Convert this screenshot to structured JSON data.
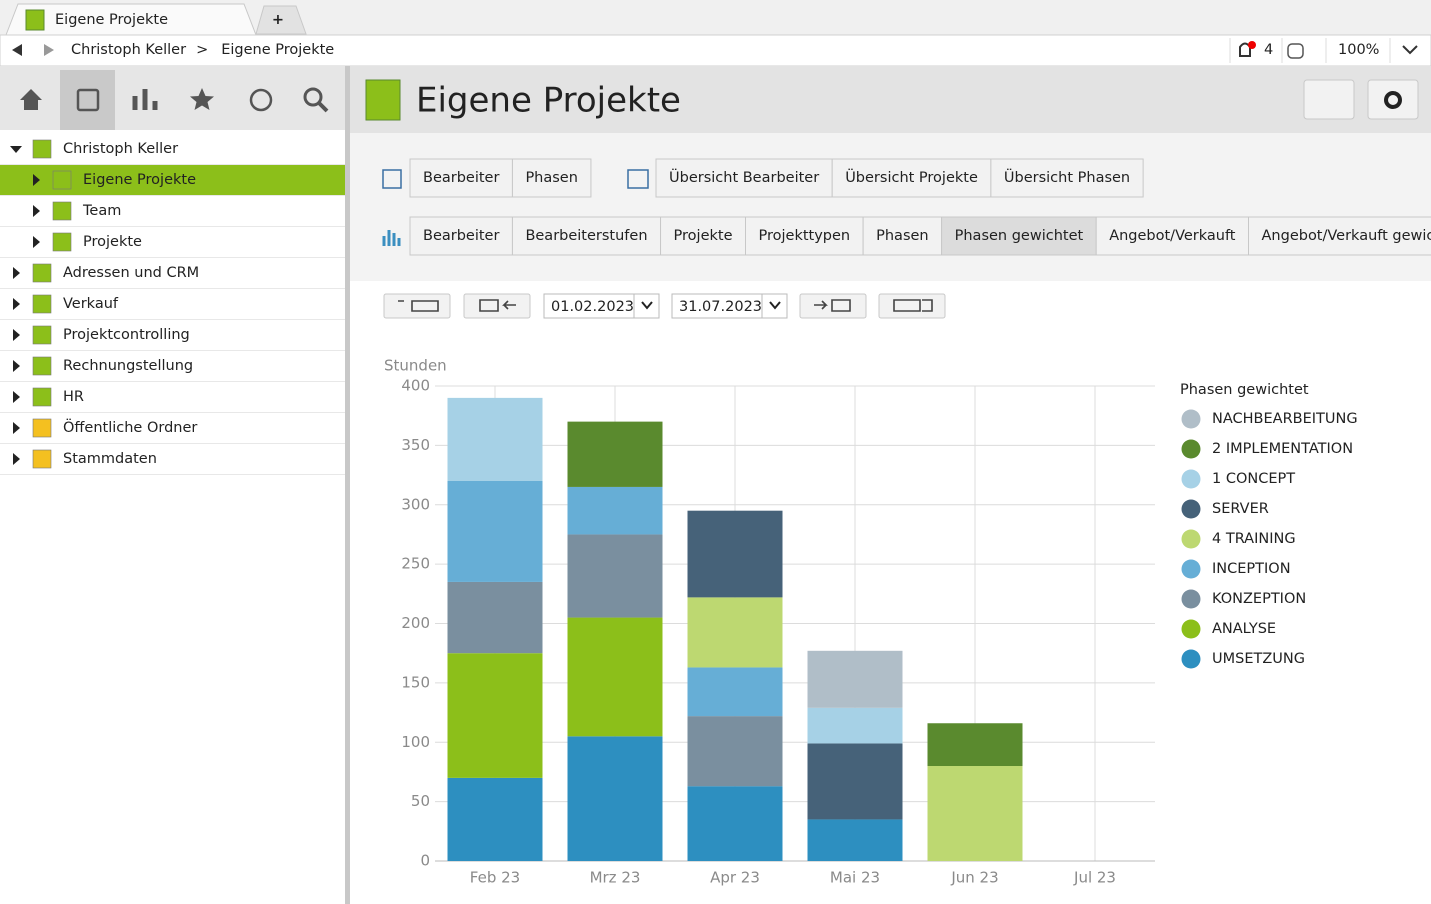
{
  "tab_bar": {
    "tabs": [
      "Eigene Projekte"
    ],
    "new_tab": "+"
  },
  "address_bar": {
    "breadcrumb": [
      "Christoph Keller",
      "Eigene Projekte"
    ],
    "separator": ">",
    "notifications": "4",
    "zoom": "100%"
  },
  "sidebar": {
    "tree": [
      {
        "label": "Christoph Keller",
        "level": 0,
        "expanded": true
      },
      {
        "label": "Eigene Projekte",
        "level": 1,
        "selected": true
      },
      {
        "label": "Team",
        "level": 1
      },
      {
        "label": "Projekte",
        "level": 1
      },
      {
        "label": "Adressen und CRM",
        "level": 0
      },
      {
        "label": "Verkauf",
        "level": 0
      },
      {
        "label": "Projektcontrolling",
        "level": 0
      },
      {
        "label": "Rechnungstellung",
        "level": 0
      },
      {
        "label": "HR",
        "level": 0
      },
      {
        "label": "Öffentliche Ordner",
        "level": 0
      },
      {
        "label": "Stammdaten",
        "level": 0
      }
    ]
  },
  "header": {
    "title": "Eigene Projekte"
  },
  "toolbar": {
    "tables": [
      "Bearbeiter",
      "Phasen"
    ],
    "overviews": [
      "Übersicht Bearbeiter",
      "Übersicht Projekte",
      "Übersicht Phasen"
    ],
    "charts": [
      "Bearbeiter",
      "Bearbeiterstufen",
      "Projekte",
      "Projekttypen",
      "Phasen",
      "Phasen gewichtet",
      "Angebot/Verkauft",
      "Angebot/Verkauft gewichtet"
    ],
    "active_chart": 5
  },
  "date_range": {
    "from": "01.02.2023",
    "to": "31.07.2023"
  },
  "chart_data": {
    "type": "stacked_bar",
    "y_label": "Stunden",
    "legend_title": "Phasen gewichtet",
    "legend_position": "right",
    "categories": [
      "Feb 23",
      "Mrz 23",
      "Apr 23",
      "Mai 23",
      "Jun 23",
      "Jul 23"
    ],
    "ylim": [
      0,
      400
    ],
    "yticks": [
      0,
      50,
      100,
      150,
      200,
      250,
      300,
      350,
      400
    ],
    "grid": true,
    "series": [
      {
        "name": "NACHBEARBEITUNG",
        "color": "#b0bec8",
        "values": [
          null,
          null,
          null,
          48,
          null,
          null
        ]
      },
      {
        "name": "2 IMPLEMENTATION",
        "color": "#5a8a2e",
        "values": [
          null,
          55,
          null,
          null,
          36,
          null
        ]
      },
      {
        "name": "1 CONCEPT",
        "color": "#a6d1e6",
        "values": [
          70,
          null,
          null,
          30,
          null,
          null
        ]
      },
      {
        "name": "SERVER",
        "color": "#466279",
        "values": [
          null,
          null,
          73,
          64,
          null,
          null
        ]
      },
      {
        "name": "4 TRAINING",
        "color": "#bdd871",
        "values": [
          null,
          null,
          59,
          null,
          80,
          null
        ]
      },
      {
        "name": "INCEPTION",
        "color": "#66aed6",
        "values": [
          85,
          40,
          41,
          null,
          null,
          null
        ]
      },
      {
        "name": "KONZEPTION",
        "color": "#7a8f9f",
        "values": [
          60,
          70,
          59,
          null,
          null,
          null
        ]
      },
      {
        "name": "ANALYSE",
        "color": "#8cbf1a",
        "values": [
          105,
          100,
          null,
          null,
          null,
          null
        ]
      },
      {
        "name": "UMSETZUNG",
        "color": "#2d8fc0",
        "values": [
          70,
          105,
          63,
          35,
          null,
          null
        ]
      }
    ]
  }
}
